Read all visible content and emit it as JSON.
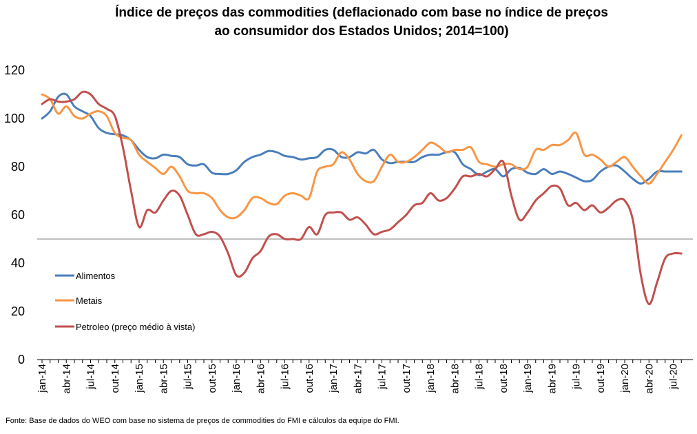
{
  "chart_data": {
    "type": "line",
    "title_line1": "Índice de preços das commodities (deflacionado com base no índice de preços",
    "title_line2": "ao consumidor dos Estados Unidos; 2014=100)",
    "source": "Fonte: Base de dados do WEO com base no sistema de preços de commodities do FMI e cálculos da equipe do FMI.",
    "ylim": [
      0,
      120
    ],
    "yticks": [
      0,
      20,
      40,
      60,
      80,
      100,
      120
    ],
    "reference_line": 50,
    "xtick_labels": [
      "jan-14",
      "abr-14",
      "jul-14",
      "out-14",
      "jan-15",
      "abr-15",
      "jul-15",
      "out-15",
      "jan-16",
      "abr-16",
      "jul-16",
      "out-16",
      "jan-17",
      "abr-17",
      "jul-17",
      "out-17",
      "jan-18",
      "abr-18",
      "jul-18",
      "out-18",
      "jan-19",
      "abr-19",
      "jul-19",
      "out-19",
      "jan-20",
      "abr-20",
      "jul-20"
    ],
    "months": [
      "jan-14",
      "fev-14",
      "mar-14",
      "abr-14",
      "mai-14",
      "jun-14",
      "jul-14",
      "ago-14",
      "set-14",
      "out-14",
      "nov-14",
      "dez-14",
      "jan-15",
      "fev-15",
      "mar-15",
      "abr-15",
      "mai-15",
      "jun-15",
      "jul-15",
      "ago-15",
      "set-15",
      "out-15",
      "nov-15",
      "dez-15",
      "jan-16",
      "fev-16",
      "mar-16",
      "abr-16",
      "mai-16",
      "jun-16",
      "jul-16",
      "ago-16",
      "set-16",
      "out-16",
      "nov-16",
      "dez-16",
      "jan-17",
      "fev-17",
      "mar-17",
      "abr-17",
      "mai-17",
      "jun-17",
      "jul-17",
      "ago-17",
      "set-17",
      "out-17",
      "nov-17",
      "dez-17",
      "jan-18",
      "fev-18",
      "mar-18",
      "abr-18",
      "mai-18",
      "jun-18",
      "jul-18",
      "ago-18",
      "set-18",
      "out-18",
      "nov-18",
      "dez-18",
      "jan-19",
      "fev-19",
      "mar-19",
      "abr-19",
      "mai-19",
      "jun-19",
      "jul-19",
      "ago-19",
      "set-19",
      "out-19",
      "nov-19",
      "dez-19",
      "jan-20",
      "fev-20",
      "mar-20",
      "abr-20",
      "mai-20",
      "jun-20",
      "jul-20",
      "ago-20"
    ],
    "legend_placement": "left",
    "grid": false,
    "series": [
      {
        "name": "Alimentos",
        "color": "#4a7ebb",
        "values": [
          100,
          103,
          109,
          110,
          105,
          103,
          101,
          96,
          94,
          93.5,
          93,
          91,
          87,
          84,
          83.5,
          85,
          84.5,
          84,
          81,
          80.5,
          81,
          77.5,
          77,
          77,
          78.5,
          82,
          84,
          85,
          86.5,
          86,
          84.5,
          84,
          83,
          83.5,
          84,
          87,
          87,
          84,
          84,
          86,
          85.5,
          87,
          83,
          81.5,
          82,
          82,
          82,
          84,
          85,
          85,
          86,
          86,
          81,
          79,
          76.5,
          78,
          79,
          76,
          79,
          79.5,
          77.5,
          77,
          79,
          77,
          78,
          77,
          75.5,
          74,
          74.5,
          78,
          80,
          80.5,
          78,
          75,
          73,
          75,
          78,
          78,
          78,
          78
        ]
      },
      {
        "name": "Metais",
        "color": "#f79646",
        "values": [
          110,
          108,
          102,
          105,
          101,
          100,
          102,
          103,
          101,
          94,
          92,
          91,
          85,
          82,
          79.5,
          77,
          80,
          76,
          70,
          69,
          69,
          67,
          62,
          59,
          59,
          62,
          67,
          67,
          65,
          64.5,
          68,
          69,
          68,
          67,
          78,
          80,
          81,
          86,
          83,
          77,
          74,
          74,
          80,
          85,
          82,
          82,
          84,
          87,
          90,
          88.5,
          86,
          87,
          87,
          88,
          82,
          81,
          80,
          81,
          81,
          79,
          80,
          87,
          87,
          89,
          89,
          91,
          94,
          85,
          85,
          83,
          80,
          82,
          84,
          80,
          76,
          73,
          77,
          82,
          87,
          93
        ]
      },
      {
        "name": "Petroleo (preço médio à vista)",
        "color": "#c0504d",
        "values": [
          106,
          108,
          107,
          107,
          108,
          111,
          110,
          106,
          104,
          101,
          88,
          70,
          55,
          62,
          61,
          66,
          70,
          68,
          60,
          52,
          52,
          53,
          51,
          44,
          35,
          36,
          42,
          45,
          51,
          52,
          50,
          50,
          50,
          55,
          52,
          60,
          61,
          61,
          58,
          59,
          56,
          52,
          53,
          54,
          57,
          60,
          64,
          65,
          69,
          66,
          67,
          71,
          76,
          76,
          77,
          76,
          79,
          82,
          68,
          58,
          61,
          66,
          69,
          72,
          71,
          64,
          65,
          62,
          64,
          61,
          63,
          66,
          66,
          58,
          35,
          23,
          32,
          42,
          44,
          44
        ]
      }
    ]
  }
}
